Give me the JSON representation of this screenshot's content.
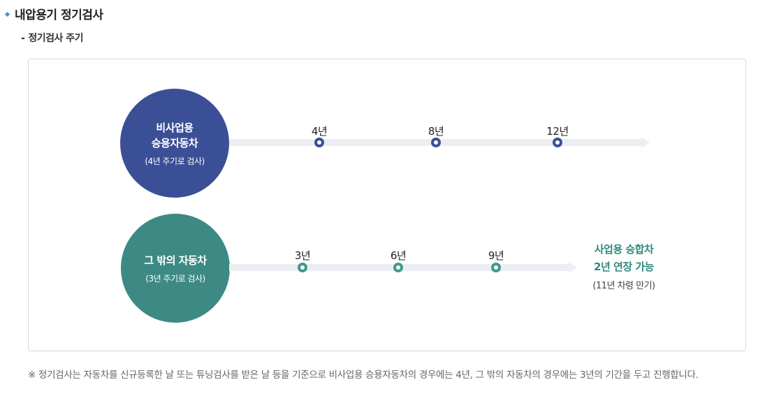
{
  "header": {
    "title": "내압용기 정기검사",
    "subtitle_dash": "-",
    "subtitle": "정기검사 주기"
  },
  "diagram": {
    "rows": [
      {
        "category_lines": [
          "비사업용",
          "승용자동차"
        ],
        "cycle_note": "(4년 주기로 검사)",
        "color": "#3b4f96",
        "milestones": [
          "4년",
          "8년",
          "12년"
        ]
      },
      {
        "category_lines": [
          "그 밖의 자동차"
        ],
        "cycle_note": "(3년 주기로 검사)",
        "color": "#3d8a84",
        "milestones": [
          "3년",
          "6년",
          "9년"
        ],
        "end_label_lines": [
          "사업용 승합차",
          "2년 연장 가능"
        ],
        "end_note": "(11년 차령 만기)",
        "end_color": "#2f8a80"
      }
    ]
  },
  "footnote": "※ 정기검사는 자동차를 신규등록한 날 또는 튜닝검사를 받은 날 등을 기준으로 비사업용 승용자동차의 경우에는 4년, 그 밖의 자동차의 경우에는 3년의 기간을 두고 진행합니다."
}
